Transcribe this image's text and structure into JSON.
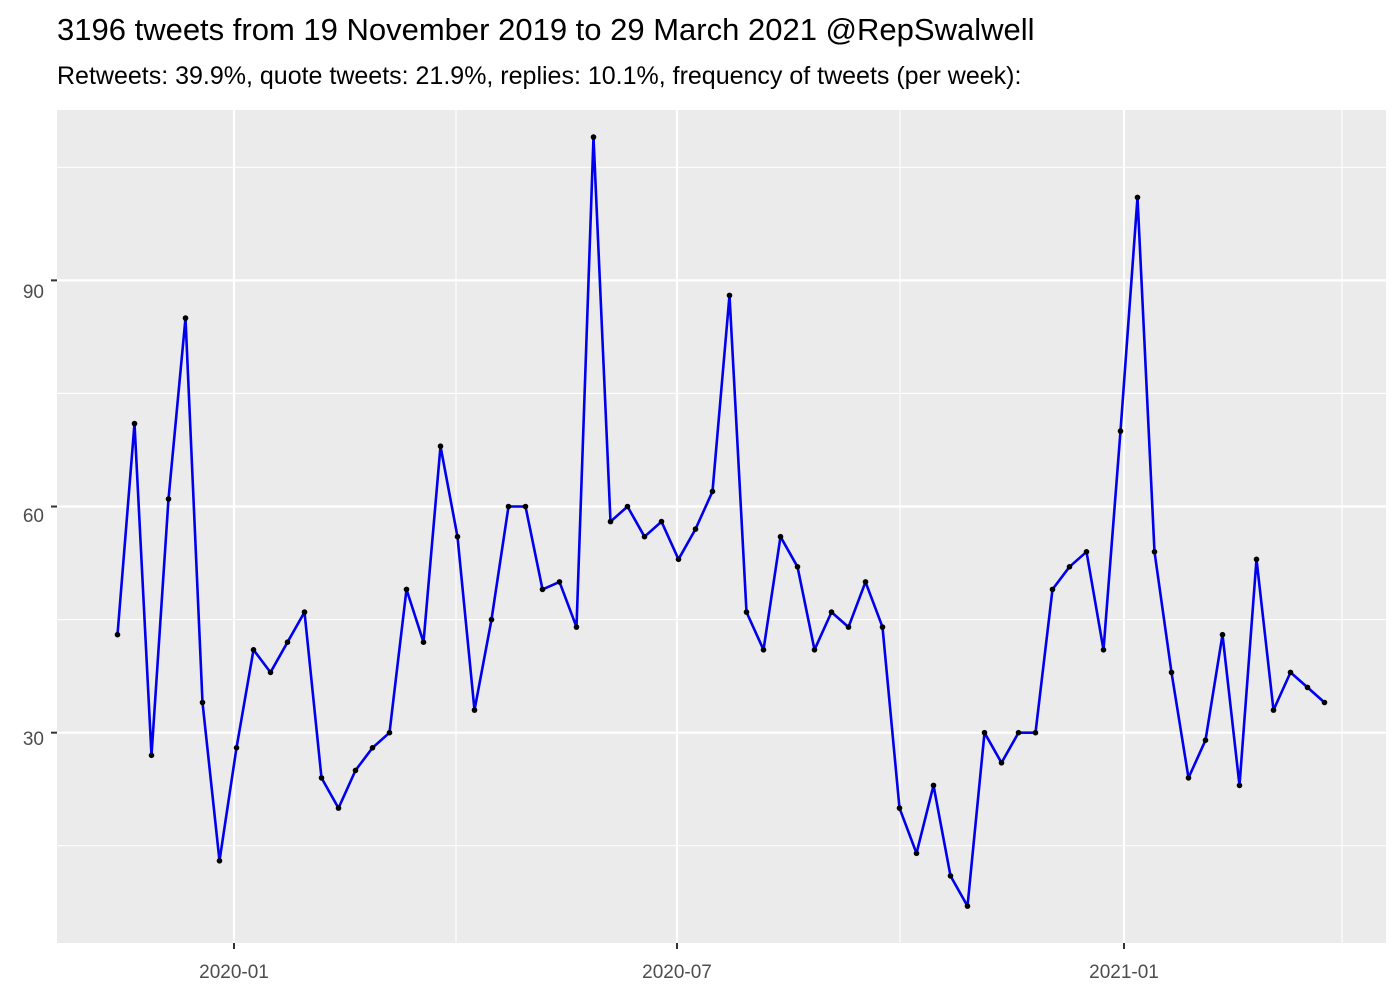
{
  "title": "3196 tweets from 19 November 2019 to 29 March 2021 @RepSwalwell",
  "subtitle": "Retweets: 39.9%, quote tweets: 21.9%, replies: 10.1%, frequency of tweets (per week):",
  "chart_data": {
    "type": "line",
    "title": "3196 tweets from 19 November 2019 to 29 March 2021 @RepSwalwell",
    "subtitle": "Retweets: 39.9%, quote tweets: 21.9%, replies: 10.1%, frequency of tweets (per week):",
    "xlabel": "",
    "ylabel": "",
    "x_tick_labels": [
      "2020-01",
      "2020-07",
      "2021-01"
    ],
    "y_tick_labels": [
      "30",
      "60",
      "90"
    ],
    "y_ticks": [
      30,
      60,
      90
    ],
    "ylim": [
      2.1,
      112.6
    ],
    "grid": true,
    "legend": "none",
    "colors": {
      "line": "#0000ee",
      "point": "#000000",
      "panel": "#ebebeb",
      "grid": "#ffffff"
    },
    "series": [
      {
        "values": [
          43,
          71,
          27,
          61,
          85,
          34,
          13,
          28,
          41,
          38,
          42,
          46,
          24,
          20,
          25,
          28,
          30,
          49,
          42,
          68,
          56,
          33,
          45,
          60,
          60,
          49,
          50,
          44,
          109,
          58,
          60,
          56,
          58,
          53,
          57,
          62,
          88,
          46,
          41,
          56,
          52,
          41,
          46,
          44,
          50,
          44,
          20,
          14,
          23,
          11,
          7,
          30,
          26,
          30,
          30,
          49,
          52,
          54,
          41,
          70,
          101,
          54,
          38,
          24,
          29,
          43,
          23,
          53,
          33,
          38,
          36,
          34
        ]
      }
    ]
  }
}
